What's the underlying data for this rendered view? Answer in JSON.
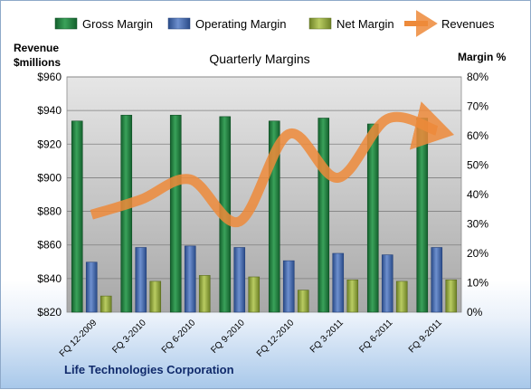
{
  "company": "Life Technologies Corporation",
  "chart_data": {
    "type": "bar",
    "title": "Quarterly Margins",
    "categories": [
      "FQ 12-2009",
      "FQ 3-2010",
      "FQ 6-2010",
      "FQ 9-2010",
      "FQ 12-2010",
      "FQ 3-2011",
      "FQ 6-2011",
      "FQ 9-2011"
    ],
    "series": [
      {
        "name": "Gross Margin",
        "axis": "right",
        "color": "#1e7a3c",
        "values": [
          65,
          67,
          67,
          66.5,
          65,
          66,
          64,
          66
        ]
      },
      {
        "name": "Operating Margin",
        "axis": "right",
        "color": "#3b63a8",
        "values": [
          17,
          22,
          22.5,
          22,
          17.5,
          20,
          19.5,
          22
        ]
      },
      {
        "name": "Net Margin",
        "axis": "right",
        "color": "#8fa53a",
        "values": [
          5.5,
          10.5,
          12.5,
          12,
          7.5,
          11,
          10.5,
          11
        ]
      },
      {
        "name": "Revenues",
        "axis": "left",
        "type": "line",
        "color": "#ed8a3a",
        "values": [
          878,
          887,
          899,
          874,
          926,
          900,
          935,
          928
        ]
      }
    ],
    "ylabel_left": "Revenue\n$millions",
    "ylabel_right": "Margin %",
    "ylim_left": [
      820,
      960
    ],
    "yticks_left": [
      "$820",
      "$840",
      "$860",
      "$880",
      "$900",
      "$920",
      "$940",
      "$960"
    ],
    "ylim_right": [
      0,
      80
    ],
    "yticks_right": [
      "0%",
      "10%",
      "20%",
      "30%",
      "40%",
      "50%",
      "60%",
      "70%",
      "80%"
    ],
    "grid": true,
    "legend_position": "top"
  }
}
